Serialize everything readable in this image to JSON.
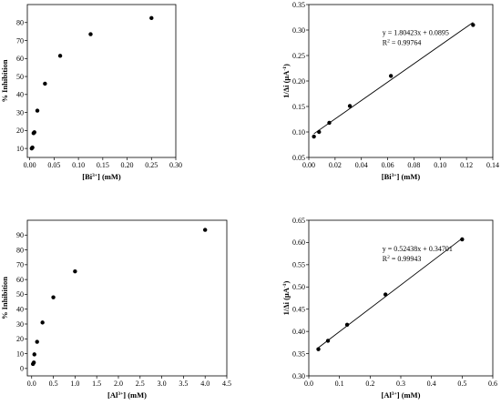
{
  "colors": {
    "axis": "#000000",
    "marker": "#000000",
    "fit_line": "#000000"
  },
  "chart_data": [
    {
      "type": "scatter",
      "ylabel": "% Inhibition",
      "xlabel_parts": [
        {
          "t": "[Bi"
        },
        {
          "t": "3+",
          "sup": true
        },
        {
          "t": "] (mM)"
        }
      ],
      "xlim": [
        -0.005,
        0.3
      ],
      "ylim": [
        5,
        90
      ],
      "xticks": [
        0.0,
        0.05,
        0.1,
        0.15,
        0.2,
        0.25,
        0.3
      ],
      "xtick_labels": [
        "0.00",
        "0.05",
        "0.10",
        "0.15",
        "0.20",
        "0.25",
        "0.30"
      ],
      "yticks": [
        10,
        20,
        30,
        40,
        50,
        60,
        70,
        80
      ],
      "ytick_labels": [
        "10",
        "20",
        "30",
        "40",
        "50",
        "60",
        "70",
        "80"
      ],
      "grid": false,
      "series": [
        {
          "x": [
            0.004,
            0.0055,
            0.0078,
            0.0095,
            0.0156,
            0.03125,
            0.0625,
            0.125,
            0.25
          ],
          "y": [
            10,
            10.5,
            18.5,
            19,
            31,
            46,
            61.5,
            73.5,
            82.5
          ]
        }
      ]
    },
    {
      "type": "scatter",
      "ylabel_parts": [
        {
          "t": "1/Δi (μA"
        },
        {
          "t": "-1",
          "sup": true
        },
        {
          "t": ")"
        }
      ],
      "xlabel_parts": [
        {
          "t": "[Bi"
        },
        {
          "t": "3+",
          "sup": true
        },
        {
          "t": "] (mM)"
        }
      ],
      "xlim": [
        0.0,
        0.14
      ],
      "ylim": [
        0.05,
        0.35
      ],
      "xticks": [
        0.0,
        0.02,
        0.04,
        0.06,
        0.08,
        0.1,
        0.12,
        0.14
      ],
      "xtick_labels": [
        "0.00",
        "0.02",
        "0.04",
        "0.06",
        "0.08",
        "0.10",
        "0.12",
        "0.14"
      ],
      "yticks": [
        0.05,
        0.1,
        0.15,
        0.2,
        0.25,
        0.3,
        0.35
      ],
      "ytick_labels": [
        "0.05",
        "0.10",
        "0.15",
        "0.20",
        "0.25",
        "0.30",
        "0.35"
      ],
      "grid": false,
      "series": [
        {
          "x": [
            0.0039,
            0.0078,
            0.0156,
            0.03125,
            0.0625,
            0.125
          ],
          "y": [
            0.091,
            0.1,
            0.118,
            0.151,
            0.21,
            0.31
          ]
        }
      ],
      "fit": {
        "slope": 1.80423,
        "intercept": 0.0895,
        "x_range": [
          0.0039,
          0.125
        ]
      },
      "equation": "y = 1.80423x + 0.0895",
      "r2_value": " = 0.99764"
    },
    {
      "type": "scatter",
      "ylabel": "% Inhibition",
      "xlabel_parts": [
        {
          "t": "[Al"
        },
        {
          "t": "3+",
          "sup": true
        },
        {
          "t": "] (mM)"
        }
      ],
      "xlim": [
        -0.1,
        4.5
      ],
      "ylim": [
        -5,
        100
      ],
      "xticks": [
        0.0,
        0.5,
        1.0,
        1.5,
        2.0,
        2.5,
        3.0,
        3.5,
        4.0,
        4.5
      ],
      "xtick_labels": [
        "0.0",
        "0.5",
        "1.0",
        "1.5",
        "2.0",
        "2.5",
        "3.0",
        "3.5",
        "4.0",
        "4.5"
      ],
      "yticks": [
        0,
        10,
        20,
        30,
        40,
        50,
        60,
        70,
        80,
        90
      ],
      "ytick_labels": [
        "0",
        "10",
        "20",
        "30",
        "40",
        "50",
        "60",
        "70",
        "80",
        "90"
      ],
      "grid": false,
      "series": [
        {
          "x": [
            0.03,
            0.05,
            0.0625,
            0.125,
            0.25,
            0.5,
            1.0,
            4.0
          ],
          "y": [
            3,
            4,
            9.5,
            18,
            31,
            48,
            65.5,
            93.5
          ]
        }
      ]
    },
    {
      "type": "scatter",
      "ylabel_parts": [
        {
          "t": "1/Δi (μA"
        },
        {
          "t": "-1",
          "sup": true
        },
        {
          "t": ")"
        }
      ],
      "xlabel_parts": [
        {
          "t": "[Al"
        },
        {
          "t": "3+",
          "sup": true
        },
        {
          "t": "] (mM)"
        }
      ],
      "xlim": [
        0.0,
        0.6
      ],
      "ylim": [
        0.3,
        0.65
      ],
      "xticks": [
        0.0,
        0.1,
        0.2,
        0.3,
        0.4,
        0.5,
        0.6
      ],
      "xtick_labels": [
        "0.0",
        "0.1",
        "0.2",
        "0.3",
        "0.4",
        "0.5",
        "0.6"
      ],
      "yticks": [
        0.3,
        0.35,
        0.4,
        0.45,
        0.5,
        0.55,
        0.6,
        0.65
      ],
      "ytick_labels": [
        "0.30",
        "0.35",
        "0.40",
        "0.45",
        "0.50",
        "0.55",
        "0.60",
        "0.65"
      ],
      "grid": false,
      "series": [
        {
          "x": [
            0.03125,
            0.0625,
            0.125,
            0.25,
            0.5
          ],
          "y": [
            0.36,
            0.379,
            0.415,
            0.483,
            0.607
          ]
        }
      ],
      "fit": {
        "slope": 0.52438,
        "intercept": 0.34701,
        "x_range": [
          0.03125,
          0.5
        ]
      },
      "equation": "y = 0.52438x + 0.34701",
      "r2_value": " = 0.99943"
    }
  ]
}
